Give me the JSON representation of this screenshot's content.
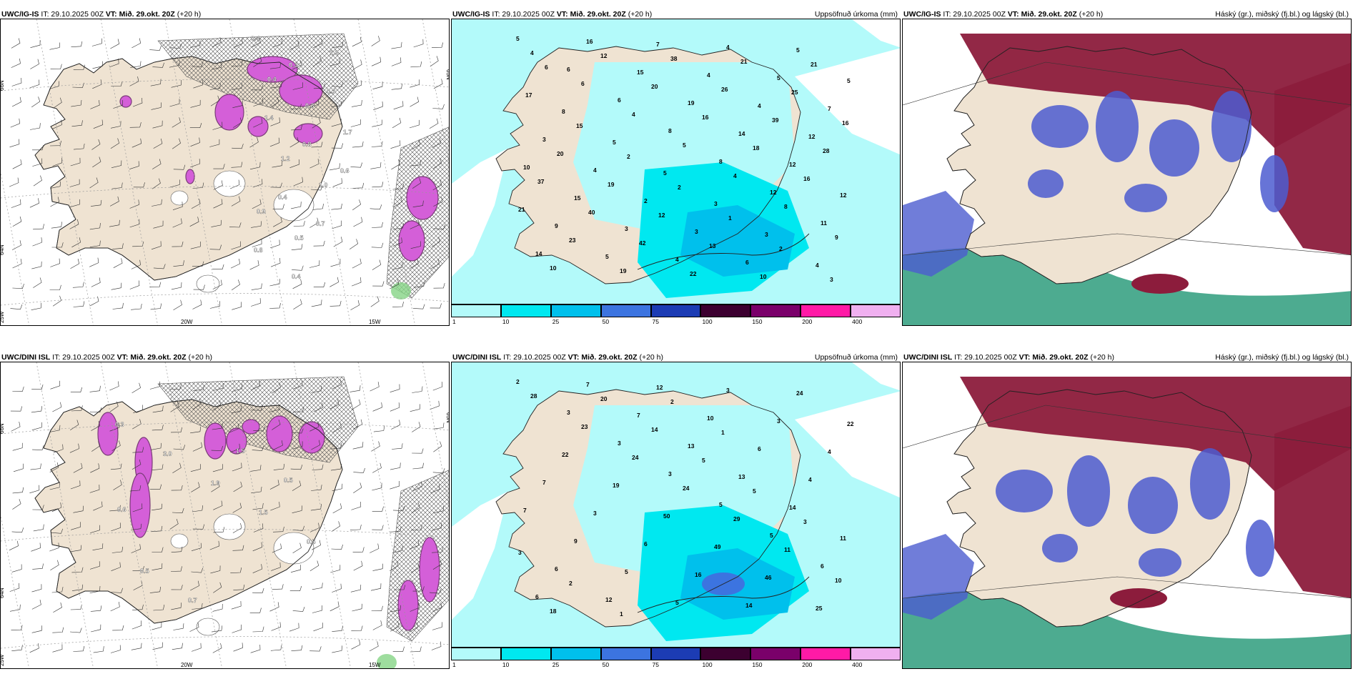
{
  "panels": [
    {
      "model": "UWC/IG-IS",
      "it": "IT: 29.10.2025 00Z",
      "vt_label": "VT:",
      "vt": "Mið. 29.okt. 20Z",
      "lead": "(+20 h)",
      "right": ""
    },
    {
      "model": "UWC/IG-IS",
      "it": "IT: 29.10.2025 00Z",
      "vt_label": "VT:",
      "vt": "Mið. 29.okt. 20Z",
      "lead": "(+20 h)",
      "right": "Uppsöfnuð úrkoma (mm)"
    },
    {
      "model": "UWC/IG-IS",
      "it": "IT: 29.10.2025 00Z",
      "vt_label": "VT:",
      "vt": "Mið. 29.okt. 20Z",
      "lead": "(+20 h)",
      "right": "Háský (gr.), miðský (fj.bl.) og lágský (bl.)"
    },
    {
      "model": "UWC/DINI ISL",
      "it": "IT: 29.10.2025 00Z",
      "vt_label": "VT:",
      "vt": "Mið. 29.okt. 20Z",
      "lead": "(+20 h)",
      "right": ""
    },
    {
      "model": "UWC/DINI ISL",
      "it": "IT: 29.10.2025 00Z",
      "vt_label": "VT:",
      "vt": "Mið. 29.okt. 20Z",
      "lead": "(+20 h)",
      "right": "Uppsöfnuð úrkoma (mm)"
    },
    {
      "model": "UWC/DINI ISL",
      "it": "IT: 29.10.2025 00Z",
      "vt_label": "VT:",
      "vt": "Mið. 29.okt. 20Z",
      "lead": "(+20 h)",
      "right": "Háský (gr.), miðský (fj.bl.) og lágský (bl.)"
    }
  ],
  "axis_labels": {
    "lat66": "66N",
    "lat64": "64N",
    "lon25": "25W",
    "lon20": "20W",
    "lon15": "15W",
    "lat65": "65N"
  },
  "colorbar": {
    "ticks": [
      "1",
      "10",
      "25",
      "50",
      "75",
      "100",
      "150",
      "200",
      "400"
    ],
    "colors": [
      "#b3fafa",
      "#00e8f0",
      "#00c0ec",
      "#3c74e0",
      "#1c3cb4",
      "#3c0030",
      "#7a006a",
      "#ff1aa6",
      "#f0b0f0"
    ]
  },
  "precip_labels_top": [
    "5",
    "6",
    "6",
    "8",
    "8",
    "12",
    "11",
    "14",
    "16",
    "15",
    "19",
    "14",
    "12",
    "12",
    "9",
    "5",
    "7",
    "4",
    "4",
    "12",
    "10",
    "15",
    "3",
    "4",
    "4",
    "5",
    "7",
    "3",
    "4",
    "2",
    "3",
    "6",
    "5",
    "5",
    "8",
    "5",
    "5",
    "3",
    "3",
    "4",
    "4",
    "6",
    "4",
    "5",
    "4",
    "8",
    "9",
    "10",
    "12",
    "20",
    "16",
    "18",
    "16",
    "21",
    "23",
    "19",
    "38",
    "26",
    "39",
    "28",
    "37",
    "40",
    "42",
    "22",
    "21",
    "25",
    "16",
    "20",
    "19",
    "12",
    "13",
    "10",
    "21",
    "17",
    "15",
    "2",
    "2",
    "1",
    "2",
    "3",
    "6"
  ],
  "precip_labels_bottom": [
    "2",
    "3",
    "3",
    "3",
    "5",
    "5",
    "6",
    "6",
    "7",
    "7",
    "13",
    "13",
    "14",
    "11",
    "6",
    "12",
    "12",
    "10",
    "6",
    "4",
    "7",
    "9",
    "5",
    "5",
    "3",
    "3",
    "4",
    "7",
    "3",
    "6",
    "16",
    "14",
    "24",
    "22",
    "22",
    "19",
    "50",
    "49",
    "46",
    "25",
    "28",
    "23",
    "24",
    "24",
    "29",
    "11",
    "10",
    "18",
    "20",
    "14",
    "5",
    "5",
    "3",
    "3",
    "2",
    "1",
    "2",
    "1"
  ],
  "hatch_labels_top": [
    "0.4",
    "0.3",
    "0.3",
    "1.4",
    "0.8",
    "0.6",
    "0.4",
    "0.7",
    "0.8",
    "0.4",
    "1.3",
    "0.4",
    "0.3",
    "1.7",
    "1.2",
    "1.0",
    "0.9",
    "0.5"
  ],
  "hatch_labels_bottom": [
    "0.3",
    "3.0",
    "1.9",
    "1.5",
    "0.5",
    "0.5",
    "0.7",
    "1.5",
    "0.5",
    "0.6"
  ],
  "colors": {
    "land": "#efe3d2",
    "precip_base": "#b3fafa",
    "magenta": "#d45fd8",
    "purple": "#7a3c78",
    "green": "#86d486",
    "low_cloud": "#4c5cd0",
    "mid_cloud": "#8c1c3c",
    "high_cloud": "#2e9c7c"
  }
}
